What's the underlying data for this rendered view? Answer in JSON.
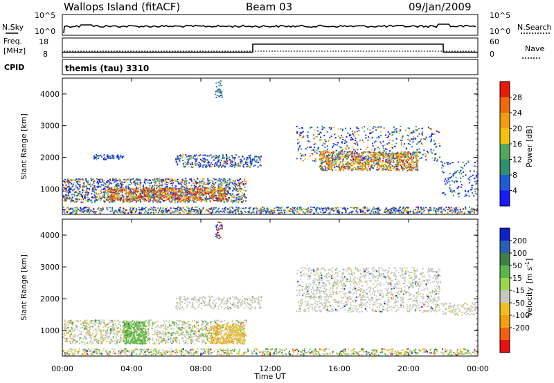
{
  "header": {
    "station": "Wallops Island (fitACF)",
    "beam": "Beam 03",
    "date": "09/Jan/2009"
  },
  "chart_data": [
    {
      "type": "line",
      "panel": "noise",
      "left_label": "N.Sky",
      "right_label": "N.Search",
      "left_ticks": [
        "10^5",
        "10^0"
      ],
      "right_ticks": [
        "10^5",
        "10^0"
      ],
      "log_scale": true
    },
    {
      "type": "line",
      "panel": "frequency",
      "left_label": "Freq.",
      "left_unit": "[MHz]",
      "right_label": "Nave",
      "left_ticks": [
        "18",
        "8"
      ],
      "right_ticks": [
        "60",
        "0"
      ],
      "series": [
        {
          "name": "Freq.",
          "x": [
            "00:00",
            "11:00",
            "11:00",
            "22:00",
            "22:00",
            "24:00"
          ],
          "y": [
            10.5,
            10.5,
            15,
            15,
            10.5,
            10.5
          ]
        }
      ]
    },
    {
      "type": "table",
      "panel": "cpid",
      "label": "CPID",
      "value": "themis (tau) 3310"
    },
    {
      "type": "heatmap",
      "panel": "power",
      "ylabel": "Slant Range [km]",
      "yticks": [
        "1000",
        "2000",
        "3000",
        "4000"
      ],
      "ylim": [
        200,
        4500
      ],
      "xticks": [
        "00:00",
        "04:00",
        "08:00",
        "12:00",
        "16:00",
        "20:00",
        "00:00"
      ],
      "colorbar_label": "Power [dB]",
      "colorbar_ticks": [
        "4",
        "8",
        "12",
        "16",
        "20",
        "24",
        "28"
      ],
      "colormap": [
        "#1a1aff",
        "#1f5bd6",
        "#2f8f6f",
        "#54a85a",
        "#f2c20f",
        "#f29c0f",
        "#f06a0a",
        "#ea1a08"
      ]
    },
    {
      "type": "heatmap",
      "panel": "velocity",
      "ylabel": "Slant Range [km]",
      "yticks": [
        "1000",
        "2000",
        "3000",
        "4000"
      ],
      "ylim": [
        200,
        4500
      ],
      "xticks": [
        "00:00",
        "04:00",
        "08:00",
        "12:00",
        "16:00",
        "20:00",
        "00:00"
      ],
      "xlabel": "Time UT",
      "colorbar_label": "Velocity",
      "colorbar_unit": "[m s",
      "colorbar_unit_exp": "-1",
      "colorbar_unit_tail": "]",
      "colorbar_ticks": [
        "200",
        "100",
        "50",
        "15",
        "-15",
        "-50",
        "-100",
        "-200"
      ],
      "colormap": [
        "#1020c8",
        "#2860b8",
        "#3f7f48",
        "#59b84a",
        "#9bd84a",
        "#c8c8c0",
        "#f0c020",
        "#f0a010",
        "#f06010",
        "#e81010"
      ]
    }
  ]
}
